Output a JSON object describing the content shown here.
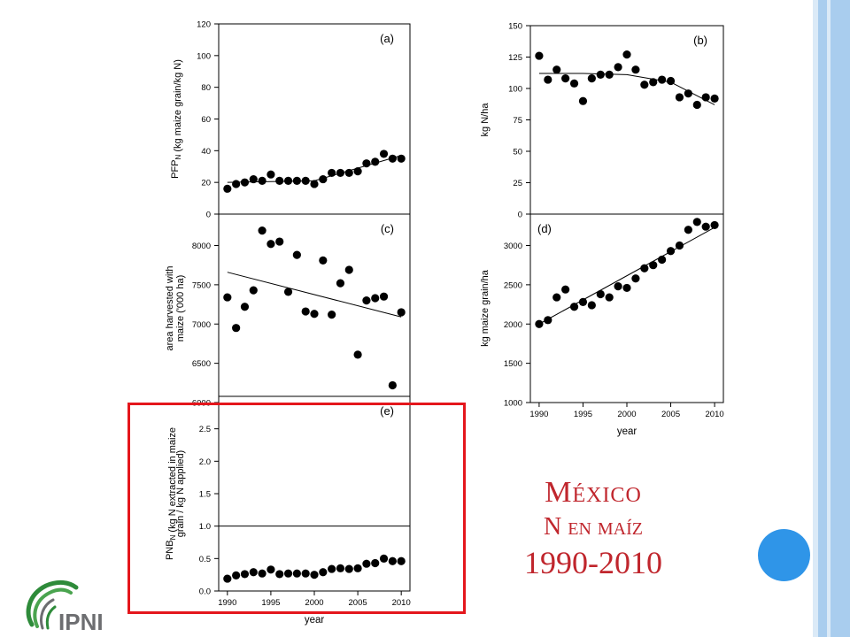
{
  "slide": {
    "title_line1": "México",
    "title_line2": "N en maíz",
    "title_line3": "1990-2010",
    "logo_text": "IPNI"
  },
  "colors": {
    "title": "#c0262d",
    "highlight_box": "#e4161c",
    "accent_circle": "#2f95e8",
    "stripe_light": "#dbeaf7",
    "stripe_mid": "#a9cdee",
    "logo_green": "#2e8b3a",
    "logo_gray": "#6d6e71"
  },
  "chart_data": [
    {
      "id": "a",
      "type": "scatter",
      "panel_label": "(a)",
      "ylabel": "PFP_N (kg maize grain/kg N)",
      "xlabel": "",
      "x": [
        1990,
        1991,
        1992,
        1993,
        1994,
        1995,
        1996,
        1997,
        1998,
        1999,
        2000,
        2001,
        2002,
        2003,
        2004,
        2005,
        2006,
        2007,
        2008,
        2009,
        2010
      ],
      "values": [
        16,
        19,
        20,
        22,
        21,
        25,
        21,
        21,
        21,
        21,
        19,
        22,
        26,
        26,
        26,
        27,
        32,
        33,
        38,
        35,
        35
      ],
      "trend": [
        [
          1990,
          20
        ],
        [
          2000,
          21
        ],
        [
          2010,
          37
        ]
      ],
      "ylim": [
        0,
        120
      ],
      "yticks": [
        0,
        20,
        40,
        60,
        80,
        100,
        120
      ],
      "xlim": [
        1989,
        2011
      ],
      "xticks": [
        1990,
        1995,
        2000,
        2005,
        2010
      ]
    },
    {
      "id": "b",
      "type": "scatter",
      "panel_label": "(b)",
      "ylabel": "kg N/ha",
      "xlabel": "",
      "x": [
        1990,
        1991,
        1992,
        1993,
        1994,
        1995,
        1996,
        1997,
        1998,
        1999,
        2000,
        2001,
        2002,
        2003,
        2004,
        2005,
        2006,
        2007,
        2008,
        2009,
        2010
      ],
      "values": [
        126,
        107,
        115,
        108,
        104,
        90,
        108,
        111,
        111,
        117,
        127,
        115,
        103,
        105,
        107,
        106,
        93,
        96,
        87,
        93,
        92
      ],
      "trend": [
        [
          1990,
          112
        ],
        [
          1995,
          112
        ],
        [
          2000,
          111
        ],
        [
          2005,
          105
        ],
        [
          2010,
          87
        ]
      ],
      "ylim": [
        0,
        150
      ],
      "yticks": [
        0,
        25,
        50,
        75,
        100,
        125,
        150
      ],
      "xlim": [
        1989,
        2011
      ],
      "xticks": [
        1990,
        1995,
        2000,
        2005,
        2010
      ]
    },
    {
      "id": "c",
      "type": "scatter",
      "panel_label": "(c)",
      "ylabel": "area harvested with maize ('000 ha)",
      "xlabel": "",
      "x": [
        1990,
        1991,
        1992,
        1993,
        1994,
        1995,
        1996,
        1997,
        1998,
        1999,
        2000,
        2001,
        2002,
        2003,
        2004,
        2005,
        2006,
        2007,
        2008,
        2009,
        2010
      ],
      "values": [
        7340,
        6950,
        7220,
        7430,
        8190,
        8020,
        8050,
        7410,
        7880,
        7160,
        7130,
        7810,
        7120,
        7520,
        7690,
        6610,
        7300,
        7330,
        7350,
        6220,
        7150
      ],
      "trend": [
        [
          1990,
          7660
        ],
        [
          2010,
          7090
        ]
      ],
      "ylim": [
        6000,
        8400
      ],
      "yticks": [
        6000,
        6500,
        7000,
        7500,
        8000
      ],
      "xlim": [
        1989,
        2011
      ],
      "xticks": [
        1990,
        1995,
        2000,
        2005,
        2010
      ]
    },
    {
      "id": "d",
      "type": "scatter",
      "panel_label": "(d)",
      "ylabel": "kg maize grain/ha",
      "xlabel": "year",
      "x": [
        1990,
        1991,
        1992,
        1993,
        1994,
        1995,
        1996,
        1997,
        1998,
        1999,
        2000,
        2001,
        2002,
        2003,
        2004,
        2005,
        2006,
        2007,
        2008,
        2009,
        2010
      ],
      "values": [
        2000,
        2050,
        2340,
        2440,
        2220,
        2280,
        2240,
        2380,
        2340,
        2480,
        2460,
        2580,
        2710,
        2750,
        2820,
        2930,
        3000,
        3200,
        3300,
        3240,
        3260
      ],
      "trend": [
        [
          1990,
          2000
        ],
        [
          2010,
          3230
        ]
      ],
      "ylim": [
        1000,
        3400
      ],
      "yticks": [
        1000,
        1500,
        2000,
        2500,
        3000
      ],
      "xlim": [
        1989,
        2011
      ],
      "xticks": [
        1990,
        1995,
        2000,
        2005,
        2010
      ]
    },
    {
      "id": "e",
      "type": "scatter",
      "panel_label": "(e)",
      "ylabel": "PNB_N (kg N extracted in maize grain / kg N applied)",
      "xlabel": "year",
      "x": [
        1990,
        1991,
        1992,
        1993,
        1994,
        1995,
        1996,
        1997,
        1998,
        1999,
        2000,
        2001,
        2002,
        2003,
        2004,
        2005,
        2006,
        2007,
        2008,
        2009,
        2010
      ],
      "values": [
        0.19,
        0.24,
        0.26,
        0.29,
        0.27,
        0.33,
        0.26,
        0.27,
        0.27,
        0.27,
        0.25,
        0.29,
        0.34,
        0.35,
        0.34,
        0.35,
        0.42,
        0.43,
        0.5,
        0.46,
        0.46
      ],
      "reference_line": 1.0,
      "ylim": [
        0,
        3.0
      ],
      "yticks": [
        0.0,
        0.5,
        1.0,
        1.5,
        2.0,
        2.5
      ],
      "xlim": [
        1989,
        2011
      ],
      "xticks": [
        1990,
        1995,
        2000,
        2005,
        2010
      ]
    }
  ]
}
